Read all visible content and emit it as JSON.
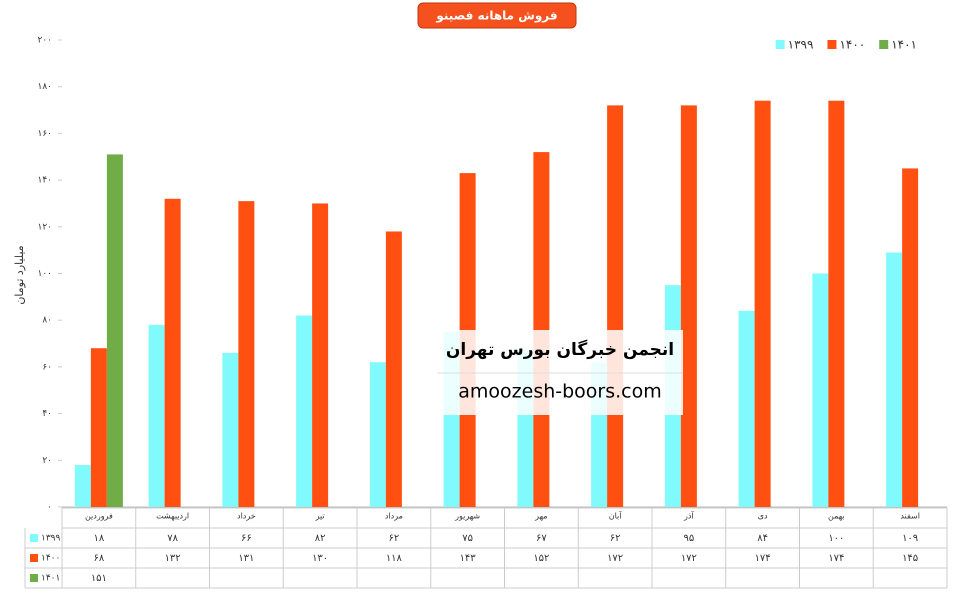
{
  "chart_data": {
    "type": "bar",
    "title": "فروش ماهانه فصینو",
    "y_label": "میلیارد تومان",
    "categories": [
      "فروردین",
      "اردیبهشت",
      "خرداد",
      "تیر",
      "مرداد",
      "شهریور",
      "مهر",
      "آبان",
      "آذر",
      "دی",
      "بهمن",
      "اسفند"
    ],
    "series": [
      {
        "name": "۱۳۹۹",
        "color": "#80fafc",
        "values": [
          18,
          78,
          66,
          82,
          62,
          75,
          67,
          62,
          95,
          84,
          100,
          109
        ],
        "value_labels": [
          "۱۸",
          "۷۸",
          "۶۶",
          "۸۲",
          "۶۲",
          "۷۵",
          "۶۷",
          "۶۲",
          "۹۵",
          "۸۴",
          "۱۰۰",
          "۱۰۹"
        ]
      },
      {
        "name": "۱۴۰۰",
        "color": "#ff5011",
        "values": [
          68,
          132,
          131,
          130,
          118,
          143,
          152,
          172,
          172,
          174,
          174,
          145
        ],
        "value_labels": [
          "۶۸",
          "۱۳۲",
          "۱۳۱",
          "۱۳۰",
          "۱۱۸",
          "۱۴۳",
          "۱۵۲",
          "۱۷۲",
          "۱۷۲",
          "۱۷۴",
          "۱۷۴",
          "۱۴۵"
        ]
      },
      {
        "name": "۱۴۰۱",
        "color": "#70ad47",
        "values": [
          151,
          null,
          null,
          null,
          null,
          null,
          null,
          null,
          null,
          null,
          null,
          null
        ],
        "value_labels": [
          "۱۵۱",
          null,
          null,
          null,
          null,
          null,
          null,
          null,
          null,
          null,
          null,
          null
        ]
      }
    ],
    "ylim": [
      0,
      200
    ],
    "yticks": [
      {
        "value": 0,
        "label": "۰"
      },
      {
        "value": 20,
        "label": "۲۰"
      },
      {
        "value": 40,
        "label": "۴۰"
      },
      {
        "value": 60,
        "label": "۶۰"
      },
      {
        "value": 80,
        "label": "۸۰"
      },
      {
        "value": 100,
        "label": "۱۰۰"
      },
      {
        "value": 120,
        "label": "۱۲۰"
      },
      {
        "value": 140,
        "label": "۱۴۰"
      },
      {
        "value": 160,
        "label": "۱۶۰"
      },
      {
        "value": 180,
        "label": "۱۸۰"
      },
      {
        "value": 200,
        "label": "۲۰۰"
      }
    ],
    "legend": "top-right",
    "grid": false
  },
  "watermark": {
    "title": "انجمن خبرگان بورس تهران",
    "url": "amoozesh-boors.com"
  }
}
